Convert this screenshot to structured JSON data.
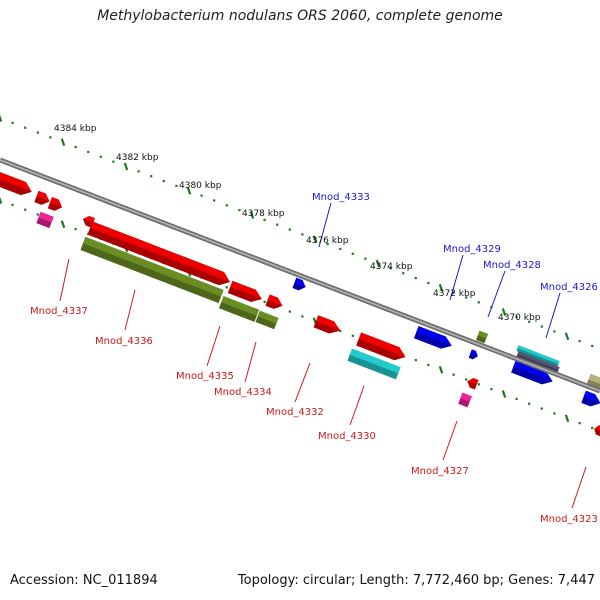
{
  "title": "Methylobacterium nodulans ORS 2060, complete genome",
  "footer": {
    "accession": "Accession: NC_011894",
    "summary": "Topology: circular; Length: 7,772,460 bp; Genes: 7,447"
  },
  "colors": {
    "backbone": "#808080",
    "tick": "#1a7a1a",
    "forward_label": "#1a1acc",
    "reverse_label": "#cc1a1a",
    "red": "#ee0000",
    "olive": "#6b8e23",
    "cyan": "#22cccc",
    "blue": "#0000ee",
    "magenta": "#ee2299",
    "khaki": "#b5b37a",
    "slate": "#555577"
  },
  "tick_labels": [
    "4384 kbp",
    "4382 kbp",
    "4380 kbp",
    "4378 kbp",
    "4376 kbp",
    "4374 kbp",
    "4372 kbp",
    "4370 kbp"
  ],
  "gene_labels": {
    "forward": [
      "Mnod_4333",
      "Mnod_4329",
      "Mnod_4328",
      "Mnod_4326"
    ],
    "reverse": [
      "Mnod_4337",
      "Mnod_4336",
      "Mnod_4335",
      "Mnod_4334",
      "Mnod_4332",
      "Mnod_4330",
      "Mnod_4327",
      "Mnod_4323"
    ]
  }
}
